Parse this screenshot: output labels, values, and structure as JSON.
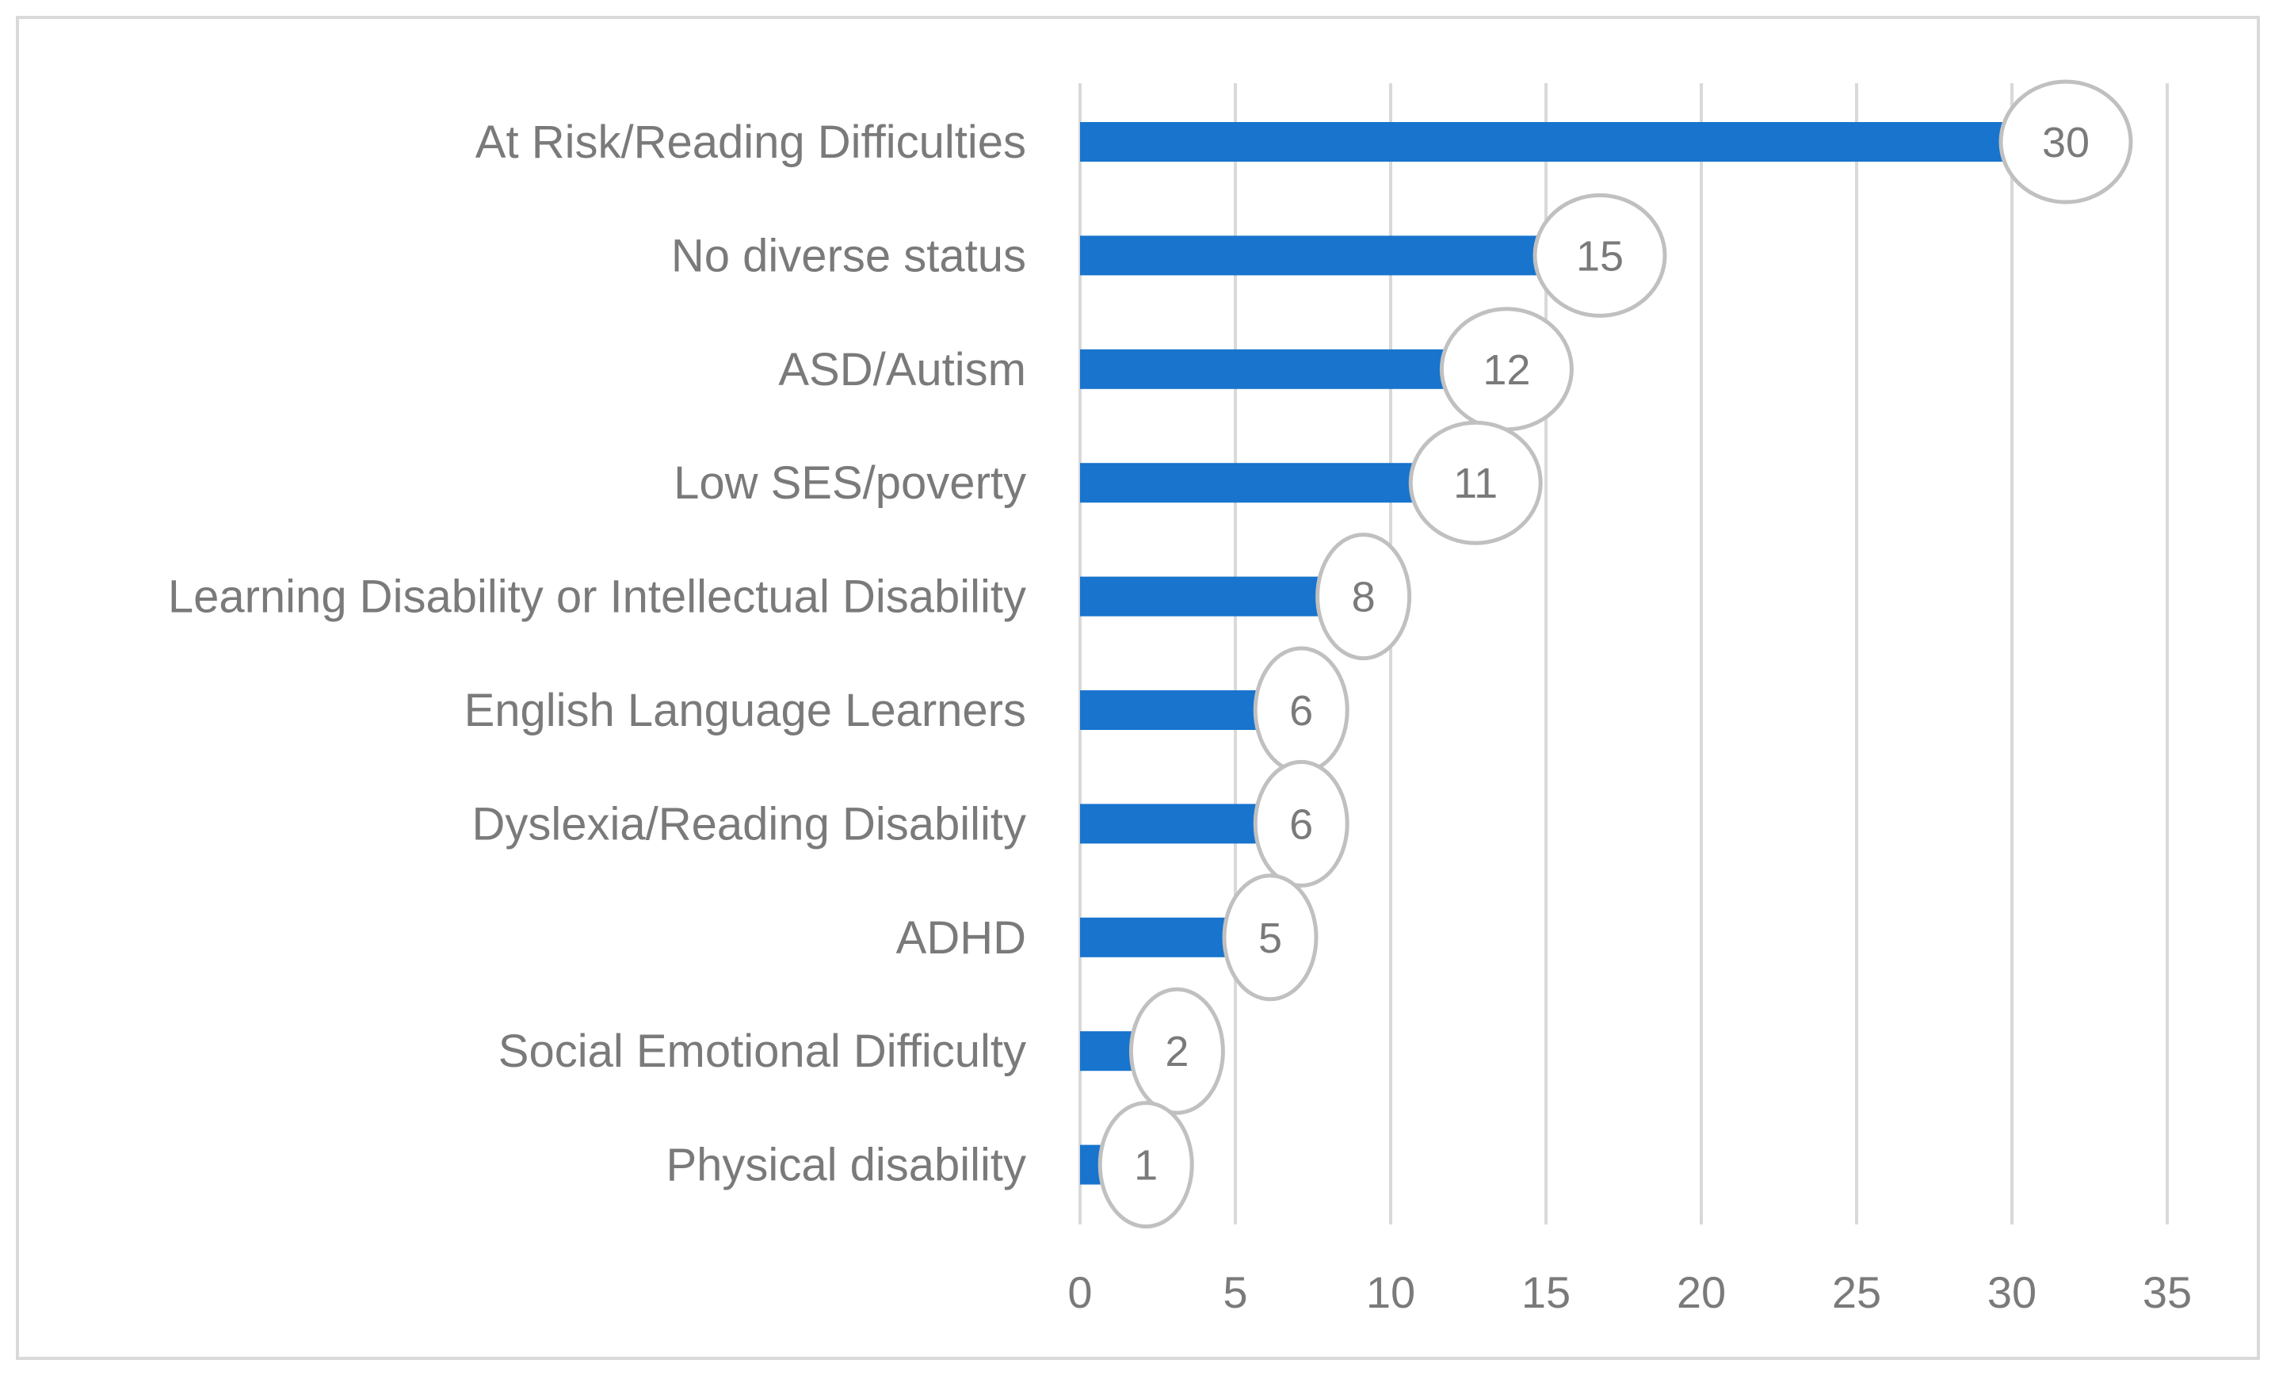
{
  "chart_data": {
    "type": "bar",
    "orientation": "horizontal",
    "title": "",
    "xlabel": "",
    "ylabel": "",
    "categories": [
      "At Risk/Reading Difficulties",
      "No diverse status",
      "ASD/Autism",
      "Low SES/poverty",
      "Learning Disability or Intellectual Disability",
      "English Language Learners",
      "Dyslexia/Reading Disability",
      "ADHD",
      "Social Emotional Difficulty",
      "Physical disability"
    ],
    "values": [
      30,
      15,
      12,
      11,
      8,
      6,
      6,
      5,
      2,
      1
    ],
    "xlim": [
      0,
      35
    ],
    "xticks": [
      0,
      5,
      10,
      15,
      20,
      25,
      30,
      35
    ],
    "grid": "vertical",
    "legend": "none",
    "colors": {
      "bar": "#1874cd",
      "grid": "#d9d9d9",
      "label_text": "#7a7a7a",
      "bubble_stroke": "#c0c0c0",
      "frame": "#d9d9d9"
    }
  }
}
